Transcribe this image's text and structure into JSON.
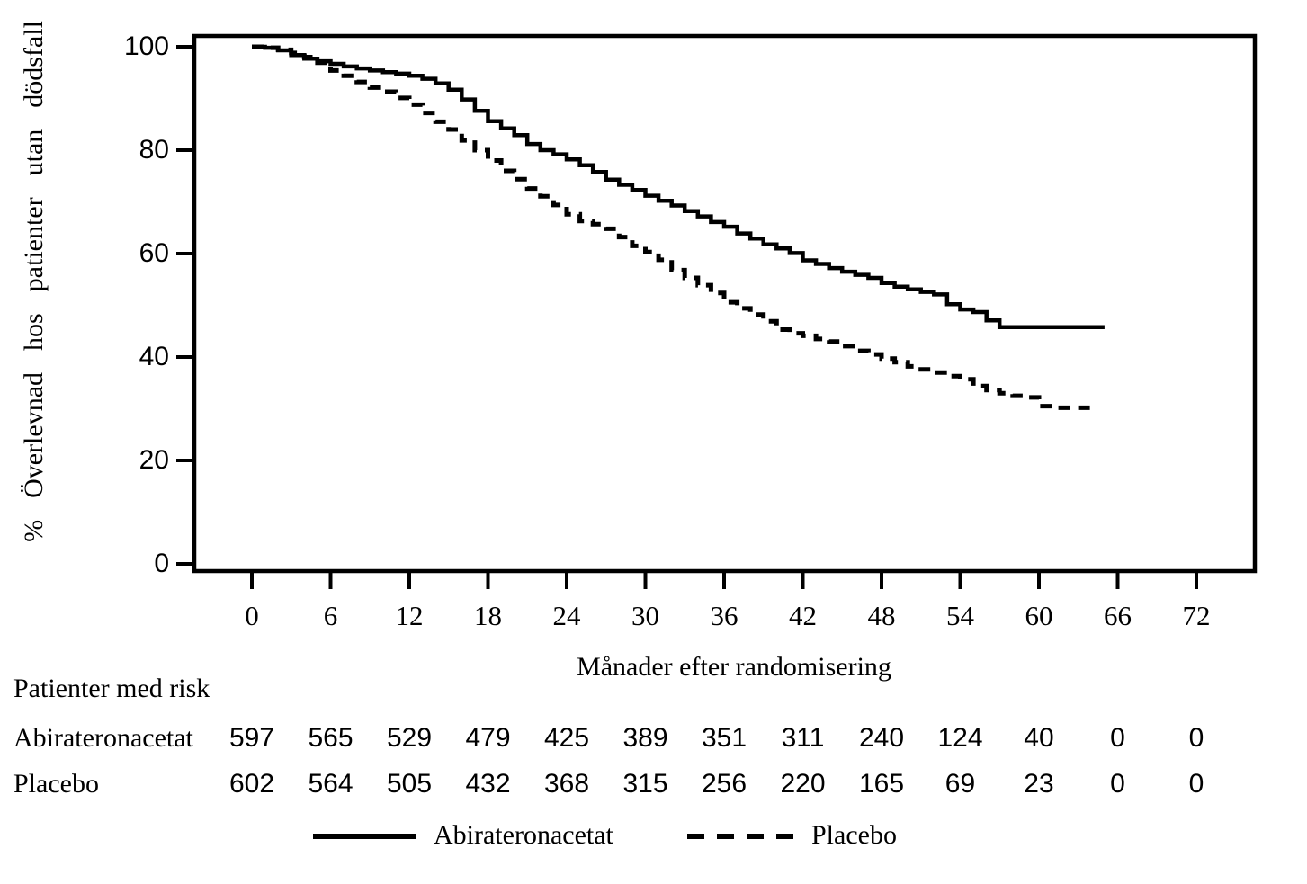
{
  "figure": {
    "background_color": "#ffffff",
    "ink_color": "#000000"
  },
  "chart_data": {
    "type": "line",
    "subtype": "kaplan_meier_step",
    "title": "",
    "xlabel": "Månader efter randomisering",
    "ylabel": "% Överlevnad hos patienter utan dödsfall",
    "x_ticks": [
      0,
      6,
      12,
      18,
      24,
      30,
      36,
      42,
      48,
      54,
      60,
      66,
      72
    ],
    "y_ticks": [
      0,
      20,
      40,
      60,
      80,
      100
    ],
    "xlim": [
      0,
      72
    ],
    "ylim": [
      0,
      100
    ],
    "grid": false,
    "legend_position": "bottom",
    "series": [
      {
        "name": "Abirateronacetat",
        "style": "solid",
        "points": [
          [
            0,
            100
          ],
          [
            1,
            99.8
          ],
          [
            2,
            99.3
          ],
          [
            3,
            98.4
          ],
          [
            4,
            97.7
          ],
          [
            5,
            97.2
          ],
          [
            6,
            96.7
          ],
          [
            7,
            96.2
          ],
          [
            8,
            95.8
          ],
          [
            9,
            95.4
          ],
          [
            10,
            95.1
          ],
          [
            11,
            94.8
          ],
          [
            12,
            94.4
          ],
          [
            13,
            93.8
          ],
          [
            14,
            92.9
          ],
          [
            15,
            91.7
          ],
          [
            16,
            89.8
          ],
          [
            17,
            87.6
          ],
          [
            18,
            85.6
          ],
          [
            19,
            84.2
          ],
          [
            20,
            82.9
          ],
          [
            21,
            81.2
          ],
          [
            22,
            80.0
          ],
          [
            23,
            79.2
          ],
          [
            24,
            78.2
          ],
          [
            25,
            77.1
          ],
          [
            26,
            75.8
          ],
          [
            27,
            74.3
          ],
          [
            28,
            73.3
          ],
          [
            29,
            72.3
          ],
          [
            30,
            71.2
          ],
          [
            31,
            70.2
          ],
          [
            32,
            69.3
          ],
          [
            33,
            68.2
          ],
          [
            34,
            67.2
          ],
          [
            35,
            66.1
          ],
          [
            36,
            65.2
          ],
          [
            37,
            63.9
          ],
          [
            38,
            62.9
          ],
          [
            39,
            61.8
          ],
          [
            40,
            61.0
          ],
          [
            41,
            60.1
          ],
          [
            42,
            58.7
          ],
          [
            43,
            58.0
          ],
          [
            44,
            57.2
          ],
          [
            45,
            56.5
          ],
          [
            46,
            55.9
          ],
          [
            47,
            55.3
          ],
          [
            48,
            54.3
          ],
          [
            49,
            53.6
          ],
          [
            50,
            53.1
          ],
          [
            51,
            52.6
          ],
          [
            52,
            52.1
          ],
          [
            53,
            50.2
          ],
          [
            54,
            49.2
          ],
          [
            55,
            48.7
          ],
          [
            56,
            47.1
          ],
          [
            57,
            45.8
          ],
          [
            65,
            45.8
          ]
        ]
      },
      {
        "name": "Placebo",
        "style": "dashed",
        "points": [
          [
            0,
            100
          ],
          [
            1,
            99.8
          ],
          [
            2,
            99.4
          ],
          [
            3,
            98.8
          ],
          [
            4,
            98.0
          ],
          [
            5,
            96.9
          ],
          [
            6,
            95.4
          ],
          [
            7,
            94.4
          ],
          [
            8,
            93.2
          ],
          [
            9,
            92.1
          ],
          [
            10,
            91.3
          ],
          [
            11,
            90.1
          ],
          [
            12,
            88.8
          ],
          [
            13,
            87.2
          ],
          [
            14,
            85.5
          ],
          [
            15,
            84.0
          ],
          [
            16,
            81.9
          ],
          [
            17,
            80.0
          ],
          [
            18,
            78.0
          ],
          [
            19,
            76.0
          ],
          [
            20,
            74.4
          ],
          [
            21,
            72.6
          ],
          [
            22,
            71.1
          ],
          [
            23,
            69.4
          ],
          [
            24,
            67.6
          ],
          [
            25,
            66.3
          ],
          [
            26,
            65.7
          ],
          [
            27,
            64.8
          ],
          [
            28,
            63.2
          ],
          [
            29,
            61.5
          ],
          [
            30,
            60.3
          ],
          [
            31,
            58.8
          ],
          [
            32,
            56.8
          ],
          [
            33,
            55.3
          ],
          [
            34,
            53.9
          ],
          [
            35,
            52.4
          ],
          [
            36,
            50.6
          ],
          [
            37,
            49.4
          ],
          [
            38,
            48.2
          ],
          [
            39,
            46.9
          ],
          [
            40,
            45.3
          ],
          [
            41,
            44.6
          ],
          [
            42,
            44.1
          ],
          [
            43,
            43.5
          ],
          [
            44,
            43.0
          ],
          [
            45,
            42.1
          ],
          [
            46,
            41.2
          ],
          [
            47,
            40.5
          ],
          [
            48,
            39.7
          ],
          [
            49,
            39.0
          ],
          [
            50,
            38.2
          ],
          [
            51,
            37.6
          ],
          [
            52,
            37.0
          ],
          [
            53,
            36.3
          ],
          [
            54,
            35.7
          ],
          [
            55,
            34.4
          ],
          [
            56,
            33.6
          ],
          [
            57,
            33.0
          ],
          [
            58,
            32.5
          ],
          [
            59,
            32.2
          ],
          [
            60,
            30.5
          ],
          [
            61,
            30.2
          ],
          [
            64.5,
            30.2
          ]
        ]
      }
    ],
    "legend": [
      {
        "label": "Abirateronacetat",
        "style": "solid"
      },
      {
        "label": "Placebo",
        "style": "dashed"
      }
    ]
  },
  "risk_table": {
    "header": "Patienter med risk",
    "months": [
      0,
      6,
      12,
      18,
      24,
      30,
      36,
      42,
      48,
      54,
      60,
      66,
      72
    ],
    "rows": [
      {
        "label": "Abirateronacetat",
        "values": [
          597,
          565,
          529,
          479,
          425,
          389,
          351,
          311,
          240,
          124,
          40,
          0,
          0
        ]
      },
      {
        "label": "Placebo",
        "values": [
          602,
          564,
          505,
          432,
          368,
          315,
          256,
          220,
          165,
          69,
          23,
          0,
          0
        ]
      }
    ]
  }
}
